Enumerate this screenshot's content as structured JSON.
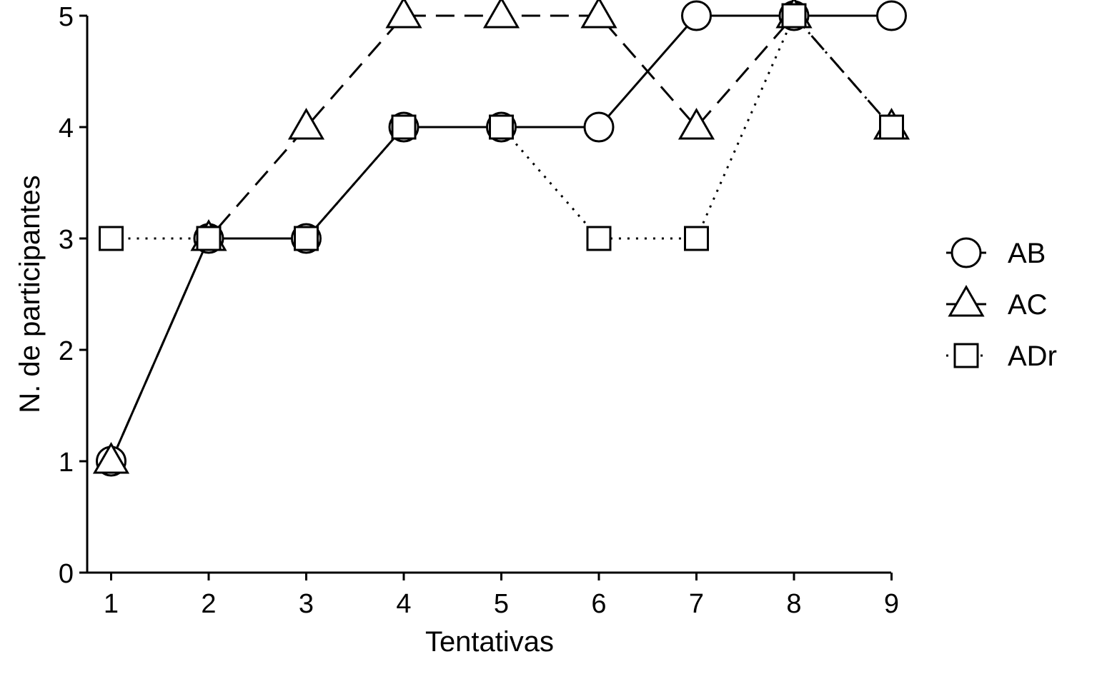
{
  "chart_data": {
    "type": "line",
    "xlabel": "Tentativas",
    "ylabel": "N. de participantes",
    "x": [
      1,
      2,
      3,
      4,
      5,
      6,
      7,
      8,
      9
    ],
    "xlim": [
      0.75,
      9
    ],
    "ylim": [
      0,
      5
    ],
    "xticks": [
      "1",
      "2",
      "3",
      "4",
      "5",
      "6",
      "7",
      "8",
      "9"
    ],
    "yticks": [
      "0",
      "1",
      "2",
      "3",
      "4",
      "5"
    ],
    "grid": false,
    "legend_position": "right",
    "series": [
      {
        "name": "AB",
        "marker": "circle",
        "line_style": "solid",
        "values": [
          1,
          3,
          3,
          4,
          4,
          4,
          5,
          5,
          5
        ]
      },
      {
        "name": "AC",
        "marker": "triangle",
        "line_style": "dashed",
        "values": [
          1,
          3,
          4,
          5,
          5,
          5,
          4,
          5,
          4
        ]
      },
      {
        "name": "ADr",
        "marker": "square",
        "line_style": "dotted",
        "values": [
          3,
          3,
          3,
          4,
          4,
          3,
          3,
          5,
          4
        ]
      }
    ],
    "colors": {
      "line": "#000000",
      "marker_fill": "#ffffff",
      "background": "#ffffff"
    }
  }
}
